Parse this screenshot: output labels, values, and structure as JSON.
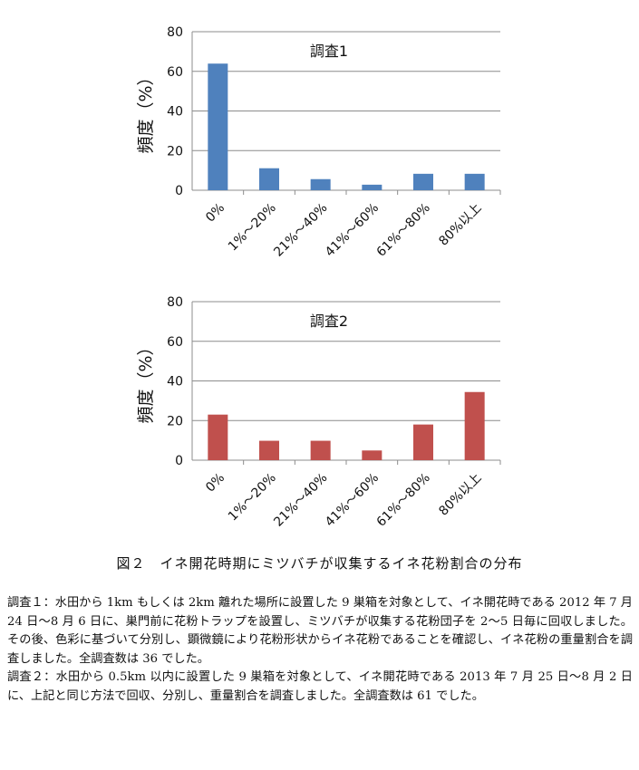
{
  "chart_data": [
    {
      "type": "bar",
      "title": "調査1",
      "ylabel": "頻度（%）",
      "xlabel": "",
      "categories": [
        "0%",
        "1%～20%",
        "21%～40%",
        "41%～60%",
        "61%～80%",
        "80%以上"
      ],
      "values": [
        63.9,
        11.1,
        5.6,
        2.8,
        8.3,
        8.3
      ],
      "ylim": [
        0,
        80
      ],
      "yticks": [
        0,
        20,
        40,
        60,
        80
      ],
      "grid": true,
      "color": "#4f81bd"
    },
    {
      "type": "bar",
      "title": "調査2",
      "ylabel": "頻度（%）",
      "xlabel": "",
      "categories": [
        "0%",
        "1%～20%",
        "21%～40%",
        "41%～60%",
        "61%～80%",
        "80%以上"
      ],
      "values": [
        23.0,
        9.8,
        9.8,
        4.9,
        18.0,
        34.4
      ],
      "ylim": [
        0,
        80
      ],
      "yticks": [
        0,
        20,
        40,
        60,
        80
      ],
      "grid": true,
      "color": "#c0504d"
    }
  ],
  "figure": {
    "caption": "図２　イネ開花時期にミツバチが収集するイネ花粉割合の分布"
  },
  "notes": {
    "survey1": "調査１：水田から 1km もしくは 2km 離れた場所に設置した 9 巣箱を対象として、イネ開花時である 2012 年 7 月 24 日～8 月 6 日に、巣門前に花粉トラップを設置し、ミツバチが収集する花粉団子を 2～5 日毎に回収しました。その後、色彩に基づいて分別し、顕微鏡により花粉形状からイネ花粉であることを確認し、イネ花粉の重量割合を調査しました。全調査数は 36 でした。",
    "survey2": "調査２：水田から 0.5km 以内に設置した 9 巣箱を対象として、イネ開花時である 2013 年 7 月 25 日～8 月 2 日に、上記と同じ方法で回収、分別し、重量割合を調査しました。全調査数は 61 でした。"
  }
}
